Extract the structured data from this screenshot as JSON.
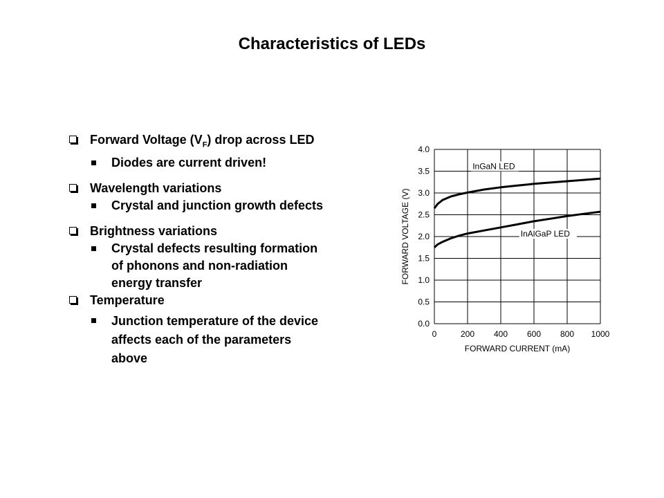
{
  "slide": {
    "title": "Characteristics of LEDs",
    "bullets": {
      "b1": {
        "text_pre": "Forward Voltage (V",
        "subscript": "F",
        "text_post": ") drop across LED",
        "sub": [
          "Diodes are current driven!"
        ]
      },
      "b2": {
        "text": "Wavelength variations",
        "sub": [
          "Crystal and junction growth defects"
        ]
      },
      "b3": {
        "text": "Brightness variations",
        "sub": [
          "Crystal defects resulting formation",
          "of phonons and non-radiation",
          "energy transfer"
        ]
      },
      "b4": {
        "text": "Temperature",
        "sub": [
          "Junction temperature of the device",
          "affects each of the parameters",
          "above"
        ]
      }
    }
  },
  "chart_data": {
    "type": "line",
    "title": "",
    "xlabel": "FORWARD CURRENT (mA)",
    "ylabel": "FORWARD VOLTAGE (V)",
    "xlim": [
      0,
      1000
    ],
    "ylim": [
      0,
      4.0
    ],
    "x_ticks": [
      "0",
      "200",
      "400",
      "600",
      "800",
      "1000"
    ],
    "y_ticks": [
      "0.0",
      "0.5",
      "1.0",
      "1.5",
      "2.0",
      "2.5",
      "3.0",
      "3.5",
      "4.0"
    ],
    "grid": true,
    "series": [
      {
        "name": "InGaN LED",
        "x": [
          0,
          20,
          50,
          100,
          150,
          200,
          300,
          400,
          500,
          600,
          700,
          800,
          900,
          1000
        ],
        "y": [
          2.65,
          2.75,
          2.84,
          2.92,
          2.97,
          3.01,
          3.08,
          3.13,
          3.17,
          3.21,
          3.24,
          3.27,
          3.3,
          3.33
        ]
      },
      {
        "name": "InAlGaP LED",
        "x": [
          0,
          20,
          50,
          100,
          150,
          200,
          300,
          400,
          500,
          600,
          700,
          800,
          900,
          1000
        ],
        "y": [
          1.75,
          1.82,
          1.88,
          1.96,
          2.02,
          2.07,
          2.14,
          2.21,
          2.28,
          2.35,
          2.41,
          2.47,
          2.52,
          2.57
        ]
      }
    ],
    "line_color": "#000000",
    "grid_color": "#000000"
  }
}
